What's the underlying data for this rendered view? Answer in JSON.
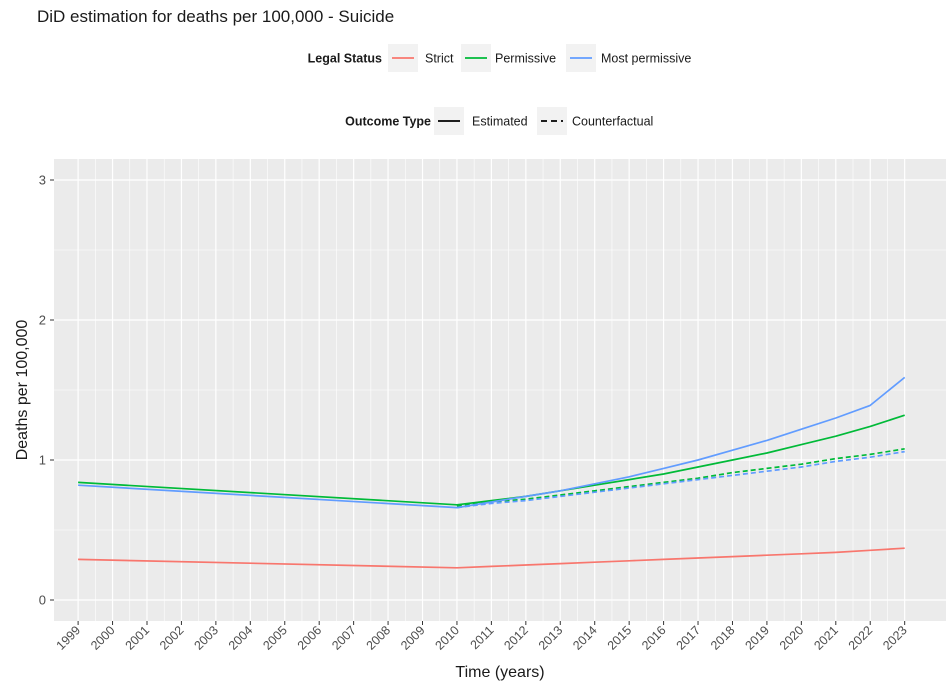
{
  "chart_data": {
    "type": "line",
    "title": "DiD estimation for deaths per 100,000 - Suicide",
    "xlabel": "Time (years)",
    "ylabel": "Deaths per 100,000",
    "x": [
      1999,
      2000,
      2001,
      2002,
      2003,
      2004,
      2005,
      2006,
      2007,
      2008,
      2009,
      2010,
      2011,
      2012,
      2013,
      2014,
      2015,
      2016,
      2017,
      2018,
      2019,
      2020,
      2021,
      2022,
      2023
    ],
    "xlim": [
      1998.3,
      2024.2
    ],
    "ylim": [
      -0.15,
      3.15
    ],
    "y_ticks": [
      0,
      1,
      2,
      3
    ],
    "grid": true,
    "legend_position": "top",
    "legends": [
      {
        "title": "Legal Status",
        "entries": [
          {
            "label": "Strict",
            "color": "#F8766D",
            "dash": "solid"
          },
          {
            "label": "Permissive",
            "color": "#00BA38",
            "dash": "solid"
          },
          {
            "label": "Most permissive",
            "color": "#619CFF",
            "dash": "solid"
          }
        ]
      },
      {
        "title": "Outcome Type",
        "entries": [
          {
            "label": "Estimated",
            "color": "#000000",
            "dash": "solid"
          },
          {
            "label": "Counterfactual",
            "color": "#000000",
            "dash": "dashed"
          }
        ]
      }
    ],
    "series": [
      {
        "group": "Strict",
        "outcome": "Estimated",
        "color": "#F8766D",
        "dash": "solid",
        "x": [
          1999,
          2010,
          2011,
          2012,
          2013,
          2014,
          2015,
          2016,
          2017,
          2018,
          2019,
          2020,
          2021,
          2022,
          2023
        ],
        "y": [
          0.29,
          0.23,
          0.24,
          0.25,
          0.26,
          0.27,
          0.28,
          0.29,
          0.3,
          0.31,
          0.32,
          0.33,
          0.34,
          0.355,
          0.37
        ]
      },
      {
        "group": "Permissive",
        "outcome": "Estimated",
        "color": "#00BA38",
        "dash": "solid",
        "x": [
          1999,
          2010,
          2011,
          2012,
          2013,
          2014,
          2015,
          2016,
          2017,
          2018,
          2019,
          2020,
          2021,
          2022,
          2023
        ],
        "y": [
          0.84,
          0.68,
          0.71,
          0.74,
          0.78,
          0.82,
          0.86,
          0.9,
          0.95,
          1.0,
          1.05,
          1.11,
          1.17,
          1.24,
          1.32
        ]
      },
      {
        "group": "Most permissive",
        "outcome": "Estimated",
        "color": "#619CFF",
        "dash": "solid",
        "x": [
          1999,
          2010,
          2011,
          2012,
          2013,
          2014,
          2015,
          2016,
          2017,
          2018,
          2019,
          2020,
          2021,
          2022,
          2023
        ],
        "y": [
          0.82,
          0.66,
          0.7,
          0.74,
          0.78,
          0.83,
          0.88,
          0.94,
          1.0,
          1.07,
          1.14,
          1.22,
          1.3,
          1.39,
          1.59
        ]
      },
      {
        "group": "Permissive",
        "outcome": "Counterfactual",
        "color": "#00BA38",
        "dash": "dashed",
        "x": [
          2010,
          2011,
          2012,
          2013,
          2014,
          2015,
          2016,
          2017,
          2018,
          2019,
          2020,
          2021,
          2022,
          2023
        ],
        "y": [
          0.67,
          0.7,
          0.72,
          0.75,
          0.78,
          0.81,
          0.84,
          0.87,
          0.91,
          0.94,
          0.97,
          1.01,
          1.04,
          1.08
        ]
      },
      {
        "group": "Most permissive",
        "outcome": "Counterfactual",
        "color": "#619CFF",
        "dash": "dashed",
        "x": [
          2010,
          2011,
          2012,
          2013,
          2014,
          2015,
          2016,
          2017,
          2018,
          2019,
          2020,
          2021,
          2022,
          2023
        ],
        "y": [
          0.66,
          0.69,
          0.71,
          0.74,
          0.77,
          0.8,
          0.83,
          0.86,
          0.89,
          0.92,
          0.95,
          0.99,
          1.02,
          1.06
        ]
      }
    ]
  }
}
